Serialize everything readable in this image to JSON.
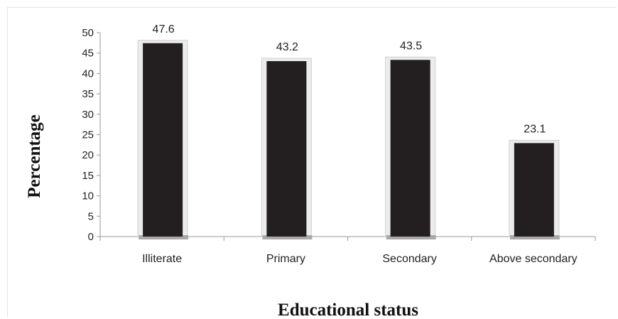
{
  "chart_data": {
    "type": "bar",
    "categories": [
      "Illiterate",
      "Primary",
      "Secondary",
      "Above secondary"
    ],
    "values": [
      47.6,
      43.2,
      43.5,
      23.1
    ],
    "data_labels": [
      "47.6",
      "43.2",
      "43.5",
      "23.1"
    ],
    "title": "",
    "xlabel": "Educational status",
    "ylabel": "Percentage",
    "ylim": [
      0,
      50
    ],
    "yticks": [
      0,
      5,
      10,
      15,
      20,
      25,
      30,
      35,
      40,
      45,
      50
    ],
    "grid": false,
    "legend": "none",
    "colors": {
      "bar": "#231f20",
      "bar_frame": "#dedede",
      "axis": "#9a9a9a"
    }
  }
}
